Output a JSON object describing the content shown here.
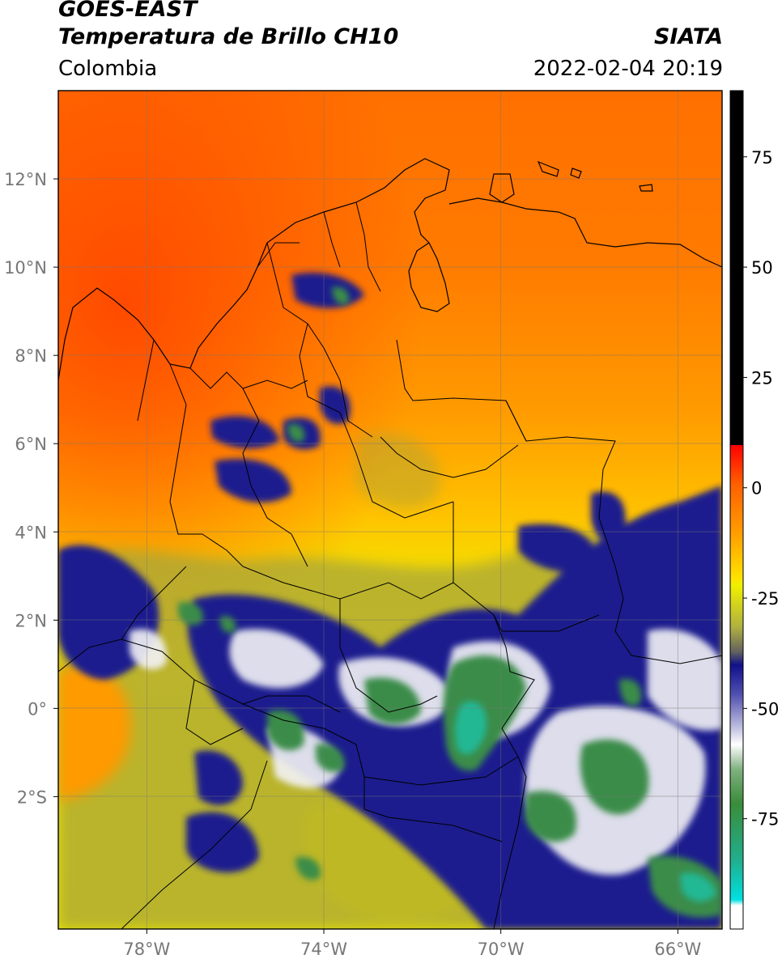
{
  "header": {
    "satellite": "GOES-EAST",
    "product": "Temperatura de Brillo CH10",
    "region": "Colombia",
    "source": "SIATA",
    "datetime": "2022-02-04 20:19"
  },
  "map": {
    "lon_range": [
      -80,
      -65
    ],
    "lat_range": [
      -5,
      14
    ],
    "lon_ticks": [
      {
        "value": -78,
        "label": "78°W"
      },
      {
        "value": -74,
        "label": "74°W"
      },
      {
        "value": -70,
        "label": "70°W"
      },
      {
        "value": -66,
        "label": "66°W"
      }
    ],
    "lat_ticks": [
      {
        "value": 12,
        "label": "12°N"
      },
      {
        "value": 10,
        "label": "10°N"
      },
      {
        "value": 8,
        "label": "8°N"
      },
      {
        "value": 6,
        "label": "6°N"
      },
      {
        "value": 4,
        "label": "4°N"
      },
      {
        "value": 2,
        "label": "2°N"
      },
      {
        "value": 0,
        "label": "0°"
      },
      {
        "value": -2,
        "label": "2°S"
      }
    ],
    "grid": true,
    "colors": {
      "warm": "#ff5500",
      "orange": "#ff8c00",
      "yellow": "#f5e600",
      "olive": "#a8a838",
      "navy": "#1a1a8c",
      "white": "#f4f4f4",
      "green": "#3a8c4a",
      "teal": "#1fbf9a"
    }
  },
  "colorbar": {
    "range": [
      -100,
      90
    ],
    "ticks": [
      {
        "value": 75,
        "label": "75"
      },
      {
        "value": 50,
        "label": "50"
      },
      {
        "value": 25,
        "label": "25"
      },
      {
        "value": 0,
        "label": "0"
      },
      {
        "value": -25,
        "label": "-25"
      },
      {
        "value": -50,
        "label": "-50"
      },
      {
        "value": -75,
        "label": "-75"
      }
    ]
  }
}
